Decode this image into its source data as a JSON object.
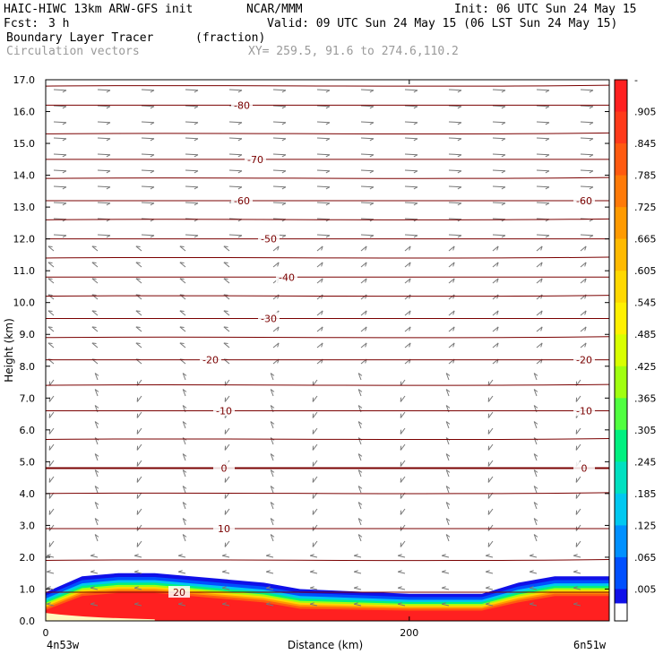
{
  "header": {
    "model": "HAIC-HIWC 13km ARW-GFS init",
    "center": "NCAR/MMM",
    "init": "Init: 06 UTC Sun 24 May 15",
    "fcst_label": "Fcst:",
    "fcst_value": "3 h",
    "valid": "Valid: 09 UTC Sun 24 May 15 (06 LST Sun 24 May 15)",
    "field_name": "Boundary Layer Tracer",
    "field_units": "(fraction)",
    "overlay": "Circulation vectors",
    "xy": "XY= 259.5, 91.6 to 274.6,110.2"
  },
  "chart_data": {
    "type": "heatmap",
    "title": "Boundary Layer Tracer",
    "ylabel": "Height (km)",
    "xlabel": "Distance (km)",
    "xlim": [
      0,
      310
    ],
    "ylim": [
      0,
      17
    ],
    "x_ticks": [
      0,
      200
    ],
    "y_ticks": [
      "0.0",
      "1.0",
      "2.0",
      "3.0",
      "4.0",
      "5.0",
      "6.0",
      "7.0",
      "8.0",
      "9.0",
      "10.0",
      "11.0",
      "12.0",
      "13.0",
      "14.0",
      "15.0",
      "16.0",
      "17.0"
    ],
    "x_start_label": "4n53w",
    "x_end_label": "6n51w",
    "colorbar": {
      "labels": [
        "-",
        ".905",
        ".845",
        ".785",
        ".725",
        ".665",
        ".605",
        ".545",
        ".485",
        ".425",
        ".365",
        ".305",
        ".245",
        ".185",
        ".125",
        ".065",
        ".005"
      ],
      "colors": [
        "#ff2020",
        "#ff3a1a",
        "#ff5a10",
        "#ff7a08",
        "#ff9a00",
        "#ffba00",
        "#ffd800",
        "#fff000",
        "#d8ff00",
        "#a0ff10",
        "#50ff40",
        "#00f080",
        "#00e0c0",
        "#00c8f0",
        "#0090ff",
        "#0050ff",
        "#1010e8"
      ]
    },
    "temperature_contours": [
      {
        "label": "-80",
        "height_km": 16.2
      },
      {
        "label": "-70",
        "height_km": 14.5
      },
      {
        "label": "-60",
        "height_km": 13.2
      },
      {
        "label": "-50",
        "height_km": 12.0
      },
      {
        "label": "-40",
        "height_km": 10.8
      },
      {
        "label": "-30",
        "height_km": 9.5
      },
      {
        "label": "-20",
        "height_km": 8.2
      },
      {
        "label": "-10",
        "height_km": 6.6
      },
      {
        "label": "0",
        "height_km": 4.8
      },
      {
        "label": "10",
        "height_km": 2.9
      },
      {
        "label": "20",
        "height_km": 0.9
      }
    ],
    "tracer_top_km": {
      "x": [
        0,
        20,
        40,
        60,
        80,
        100,
        120,
        140,
        160,
        180,
        200,
        220,
        240,
        260,
        280,
        300,
        310
      ],
      "y": [
        0.9,
        1.4,
        1.5,
        1.5,
        1.4,
        1.3,
        1.2,
        1.0,
        0.95,
        0.9,
        0.85,
        0.85,
        0.85,
        1.2,
        1.4,
        1.4,
        1.4
      ]
    }
  },
  "colors": {
    "contour": "#7a0000",
    "vector": "#777777",
    "tracer_core": "#ff2020"
  }
}
